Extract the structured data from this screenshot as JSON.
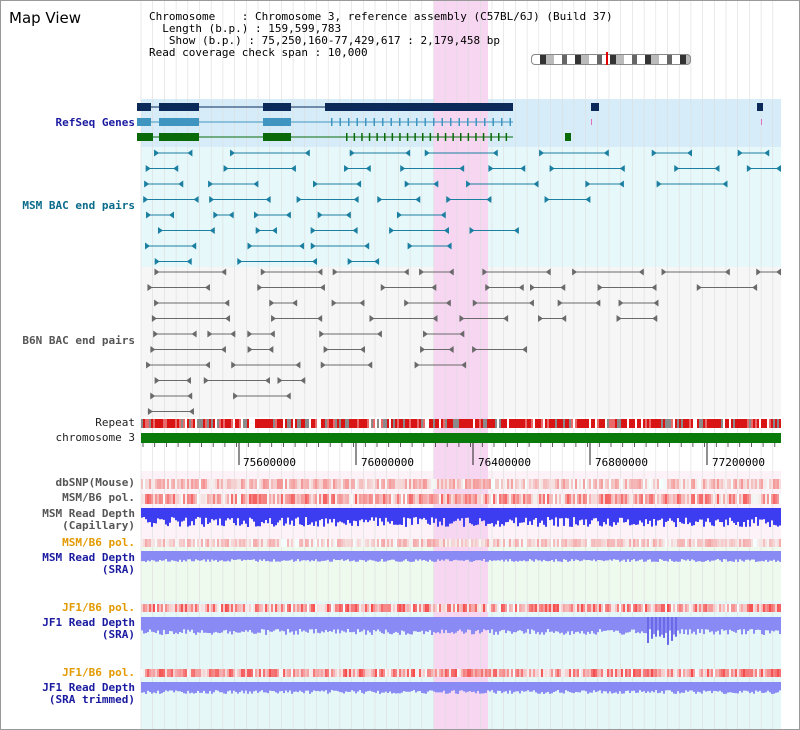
{
  "title": "Map View",
  "info": {
    "chromosome_label": "Chromosome",
    "chromosome_value": "Chromosome 3, reference assembly (C57BL/6J) (Build 37)",
    "length_label": "Length (b.p.)",
    "length_value": "159,599,783",
    "show_label": "Show (b.p.)",
    "show_value": "75,250,160-77,429,617 : 2,179,458 bp",
    "coverage_label": "Read coverage check span",
    "coverage_value": "10,000"
  },
  "tracks": {
    "refseq": "RefSeq Genes",
    "msm_bac": "MSM BAC end pairs",
    "b6n_bac": "B6N BAC end pairs",
    "repeat": "Repeat",
    "chromosome": "chromosome 3",
    "dbsnp": "dbSNP(Mouse)",
    "msm_b6_pol_1": "MSM/B6 pol.",
    "msm_depth_cap": "MSM Read Depth\n(Capillary)",
    "msm_b6_pol_2": "MSM/B6 pol.",
    "msm_depth_sra": "MSM Read Depth\n(SRA)",
    "jf1_b6_pol_1": "JF1/B6 pol.",
    "jf1_depth_sra": "JF1 Read Depth\n(SRA)",
    "jf1_b6_pol_2": "JF1/B6 pol.",
    "jf1_depth_trim": "JF1 Read Depth\n(SRA trimmed)"
  },
  "axis": {
    "ticks": [
      "75600000",
      "76000000",
      "76400000",
      "76800000",
      "77200000"
    ]
  },
  "colors": {
    "highlight": "#f7d6f2",
    "refseq_bg": "#d4ecfb",
    "bac_bg": "#e8f8fb",
    "gene_navy": "#0b2a5a",
    "gene_light": "#3f95c0",
    "gene_green": "#0a6a0a",
    "chrom_green": "#0a7a0a",
    "repeat_red": "#d81414",
    "depth_blue": "#3c3cf0",
    "depth_light": "#8a8af5",
    "pol_pink": "#f4a0a0"
  }
}
